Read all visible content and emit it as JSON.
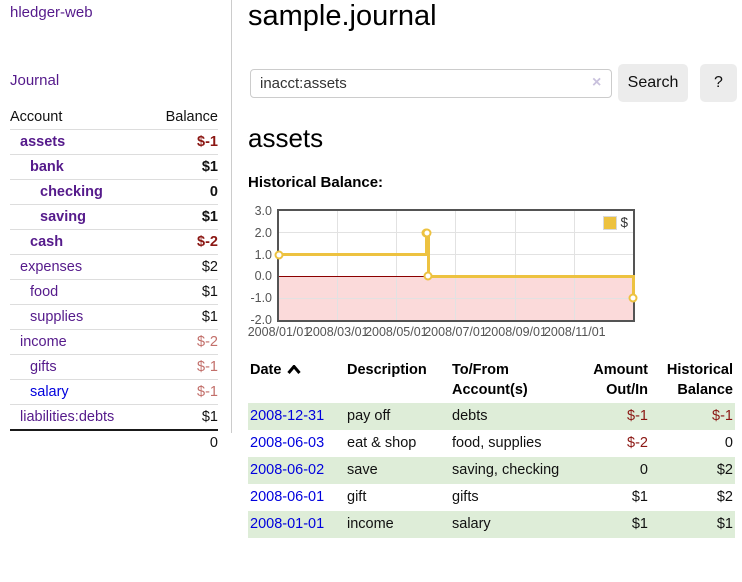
{
  "colors": {
    "link_purple": "#551a8b",
    "link_blue": "#0000dd",
    "negative_dark": "#8b1713",
    "negative_soft": "#c26f6a",
    "row_green": "#deedd8",
    "series_gold": "#edc240",
    "zero_line_red": "#8b0000",
    "below_zero_pink": "#fbdada"
  },
  "sidebar": {
    "brand": "hledger-web",
    "journal_link": "Journal",
    "header": {
      "account": "Account",
      "balance": "Balance"
    },
    "accounts": [
      {
        "name": "assets",
        "depth": 1,
        "balance": "$-1",
        "bold": true
      },
      {
        "name": "bank",
        "depth": 2,
        "balance": "$1",
        "bold": true
      },
      {
        "name": "checking",
        "depth": 3,
        "balance": "0",
        "bold": true
      },
      {
        "name": "saving",
        "depth": 3,
        "balance": "$1",
        "bold": true
      },
      {
        "name": "cash",
        "depth": 2,
        "balance": "$-2",
        "bold": true
      },
      {
        "name": "expenses",
        "depth": 1,
        "balance": "$2"
      },
      {
        "name": "food",
        "depth": 2,
        "balance": "$1"
      },
      {
        "name": "supplies",
        "depth": 2,
        "balance": "$1"
      },
      {
        "name": "income",
        "depth": 1,
        "balance": "$-2"
      },
      {
        "name": "gifts",
        "depth": 2,
        "balance": "$-1"
      },
      {
        "name": "salary",
        "depth": 2,
        "balance": "$-1",
        "link": "blue"
      },
      {
        "name": "liabilities:debts",
        "depth": 1,
        "balance": "$1"
      }
    ],
    "total": "0"
  },
  "main": {
    "title": "sample.journal",
    "search": {
      "value": "inacct:assets",
      "clear_icon": "×",
      "search_button": "Search",
      "help_button": "?"
    },
    "account_heading": "assets",
    "section_label": "Historical Balance:"
  },
  "chart_data": {
    "type": "line",
    "title": "Historical Balance",
    "step": true,
    "legend": {
      "position": "top-right",
      "entries": [
        "$"
      ]
    },
    "series": [
      {
        "name": "$",
        "color": "#edc240",
        "points": [
          [
            "2008-01-01",
            1
          ],
          [
            "2008-06-01",
            2
          ],
          [
            "2008-06-02",
            2
          ],
          [
            "2008-06-03",
            0
          ],
          [
            "2008-12-31",
            -1
          ]
        ]
      }
    ],
    "x_range": [
      "2008-01-01",
      "2008-12-31"
    ],
    "x_ticks": [
      "2008/01/01",
      "2008/03/01",
      "2008/05/01",
      "2008/07/01",
      "2008/09/01",
      "2008/11/01"
    ],
    "y_ticks": [
      3.0,
      2.0,
      1.0,
      0.0,
      -1.0,
      -2.0
    ],
    "ylim": [
      -2,
      3
    ],
    "grid": true,
    "below_zero_shaded": true
  },
  "register": {
    "headers": [
      "Date",
      "Description",
      "To/From Account(s)",
      "Amount Out/In",
      "Historical Balance"
    ],
    "sort": {
      "column": "Date",
      "direction": "ascending"
    },
    "rows": [
      {
        "date": "2008-12-31",
        "description": "pay off",
        "accounts": "debts",
        "amount": "$-1",
        "balance": "$-1"
      },
      {
        "date": "2008-06-03",
        "description": "eat & shop",
        "accounts": "food, supplies",
        "amount": "$-2",
        "balance": "0"
      },
      {
        "date": "2008-06-02",
        "description": "save",
        "accounts": "saving, checking",
        "amount": "0",
        "balance": "$2"
      },
      {
        "date": "2008-06-01",
        "description": "gift",
        "accounts": "gifts",
        "amount": "$1",
        "balance": "$2"
      },
      {
        "date": "2008-01-01",
        "description": "income",
        "accounts": "salary",
        "amount": "$1",
        "balance": "$1"
      }
    ]
  }
}
